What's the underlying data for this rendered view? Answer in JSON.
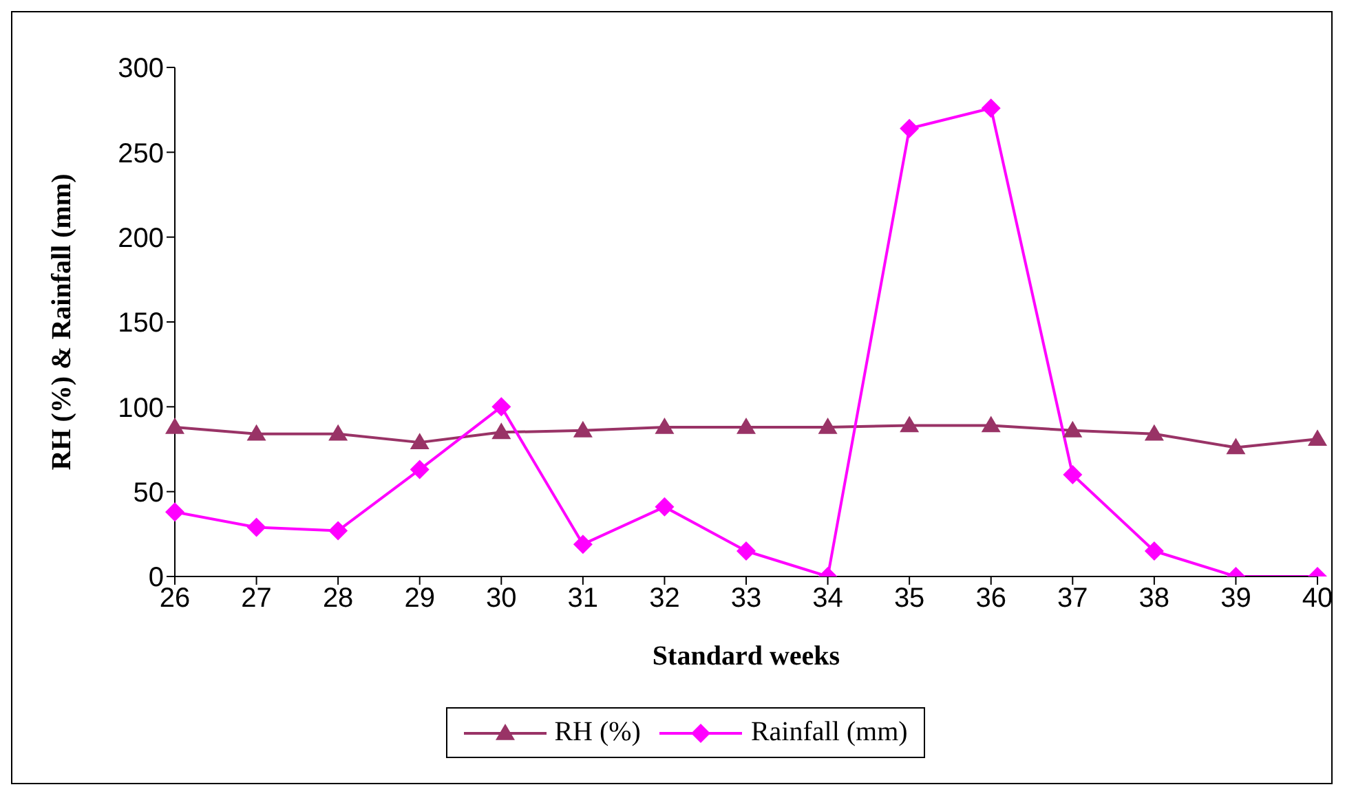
{
  "chart_data": {
    "type": "line",
    "xlabel": "Standard weeks",
    "ylabel": "RH (%) & Rainfall (mm)",
    "categories": [
      "26",
      "27",
      "28",
      "29",
      "30",
      "31",
      "32",
      "33",
      "34",
      "35",
      "36",
      "37",
      "38",
      "39",
      "40"
    ],
    "series": [
      {
        "name": "RH (%)",
        "color": "#993366",
        "marker": "triangle",
        "values": [
          88,
          84,
          84,
          79,
          85,
          86,
          88,
          88,
          88,
          89,
          89,
          86,
          84,
          76,
          81
        ]
      },
      {
        "name": "Rainfall (mm)",
        "color": "#ff00ff",
        "marker": "diamond",
        "values": [
          38,
          29,
          27,
          63,
          100,
          19,
          41,
          15,
          0,
          264,
          276,
          60,
          15,
          0,
          0
        ]
      }
    ],
    "ylim": [
      0,
      300
    ],
    "yticks": [
      0,
      50,
      100,
      150,
      200,
      250,
      300
    ],
    "grid": false,
    "legend": "bottom"
  }
}
